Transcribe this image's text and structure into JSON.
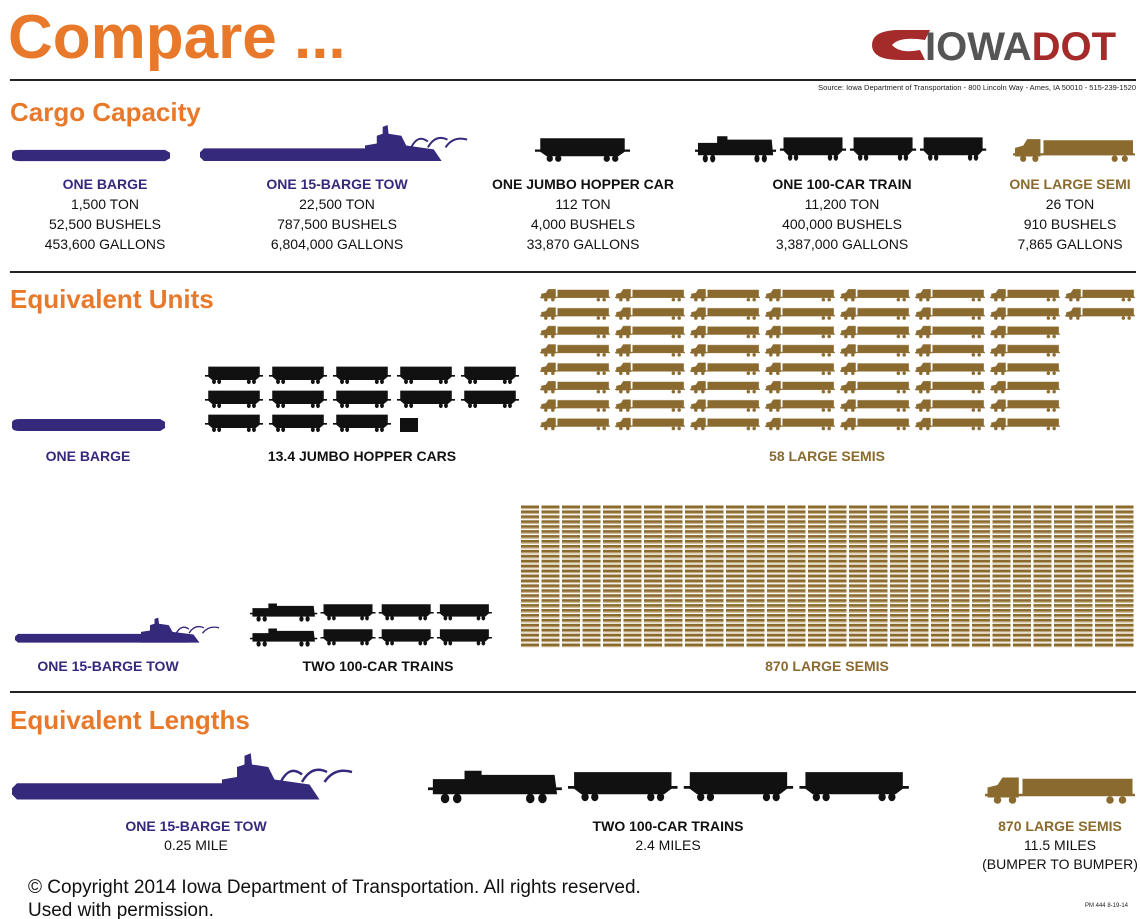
{
  "header": {
    "title": "Compare ...",
    "logo": {
      "state": "IOWA",
      "agency": "DOT"
    },
    "source": "Source: Iowa Department of Transportation - 800 Lincoln Way - Ames, IA 50010 - 515-239-1520"
  },
  "cargo_capacity": {
    "heading": "Cargo Capacity",
    "items": [
      {
        "name": "ONE BARGE",
        "lines": [
          "1,500 TON",
          "52,500 BUSHELS",
          "453,600 GALLONS"
        ]
      },
      {
        "name": "ONE 15-BARGE TOW",
        "lines": [
          "22,500 TON",
          "787,500 BUSHELS",
          "6,804,000 GALLONS"
        ]
      },
      {
        "name": "ONE JUMBO HOPPER CAR",
        "lines": [
          "112 TON",
          "4,000 BUSHELS",
          "33,870 GALLONS"
        ]
      },
      {
        "name": "ONE 100-CAR TRAIN",
        "lines": [
          "11,200 TON",
          "400,000 BUSHELS",
          "3,387,000 GALLONS"
        ]
      },
      {
        "name": "ONE LARGE SEMI",
        "lines": [
          "26 TON",
          "910 BUSHELS",
          "7,865 GALLONS"
        ]
      }
    ]
  },
  "equivalent_units": {
    "heading": "Equivalent Units",
    "labels": [
      "ONE BARGE",
      "13.4 JUMBO HOPPER CARS",
      "58 LARGE SEMIS",
      "ONE 15-BARGE TOW",
      "TWO 100-CAR TRAINS",
      "870 LARGE SEMIS"
    ]
  },
  "equivalent_lengths": {
    "heading": "Equivalent Lengths",
    "items": [
      {
        "name": "ONE 15-BARGE TOW",
        "lines": [
          "0.25 MILE"
        ]
      },
      {
        "name": "TWO 100-CAR TRAINS",
        "lines": [
          "2.4 MILES"
        ]
      },
      {
        "name": "870 LARGE SEMIS",
        "lines": [
          "11.5 MILES",
          "(BUMPER TO BUMPER)"
        ]
      }
    ]
  },
  "footer": {
    "copyright": [
      "© Copyright 2014 Iowa Department of Transportation. All rights reserved.",
      "Used with permission."
    ],
    "code": "PM 444  8-19-14"
  }
}
